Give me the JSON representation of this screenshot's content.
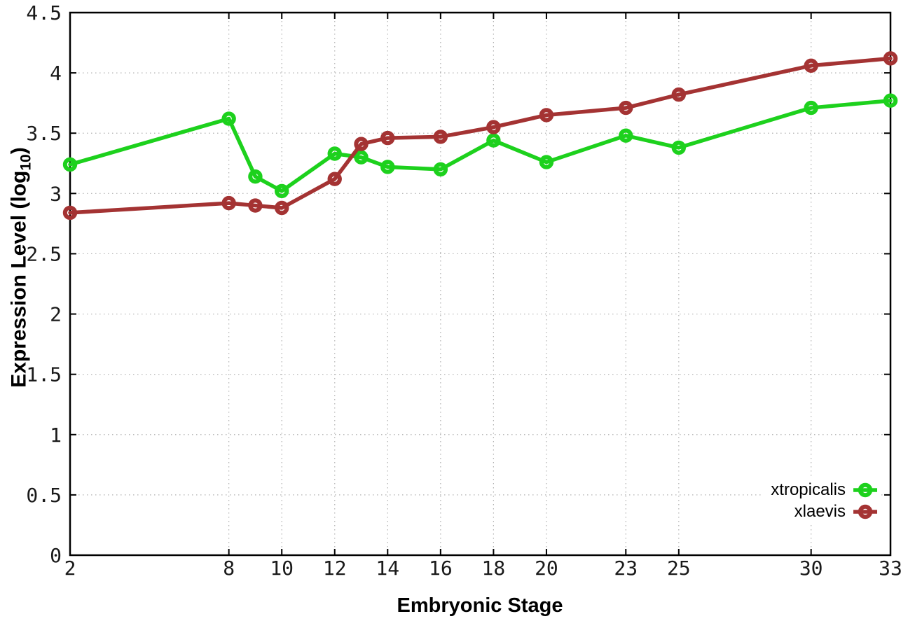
{
  "chart_data": {
    "type": "line",
    "title": "",
    "xlabel": "Embryonic Stage",
    "ylabel": "Expression Level (log10)",
    "ylabel_parts": {
      "prefix": "Expression Level (log",
      "sub": "10",
      "suffix": ")"
    },
    "xlim": [
      2,
      33
    ],
    "ylim": [
      0,
      4.5
    ],
    "x_ticks": [
      2,
      8,
      10,
      12,
      14,
      16,
      18,
      20,
      23,
      25,
      30,
      33
    ],
    "y_ticks": [
      0,
      0.5,
      1,
      1.5,
      2,
      2.5,
      3,
      3.5,
      4,
      4.5
    ],
    "y_tick_labels": [
      "0",
      "0.5",
      "1",
      "1.5",
      "2",
      "2.5",
      "3",
      "3.5",
      "4",
      "4.5"
    ],
    "grid": true,
    "marker_style": "open-circle",
    "legend_position": "bottom-right-inside",
    "x": [
      2,
      8,
      9,
      10,
      12,
      13,
      14,
      16,
      18,
      20,
      23,
      25,
      30,
      33
    ],
    "series": [
      {
        "name": "xtropicalis",
        "color": "#1dd11d",
        "values": [
          3.24,
          3.62,
          3.14,
          3.02,
          3.33,
          3.3,
          3.22,
          3.2,
          3.44,
          3.26,
          3.48,
          3.38,
          3.71,
          3.77
        ]
      },
      {
        "name": "xlaevis",
        "color": "#a43333",
        "values": [
          2.84,
          2.92,
          2.9,
          2.88,
          3.12,
          3.41,
          3.46,
          3.47,
          3.55,
          3.65,
          3.71,
          3.82,
          4.06,
          4.12
        ]
      }
    ]
  },
  "colors": {
    "axis": "#000000",
    "grid": "#b0b0b0",
    "background": "#ffffff",
    "tick_text": "#1a1a1a"
  }
}
